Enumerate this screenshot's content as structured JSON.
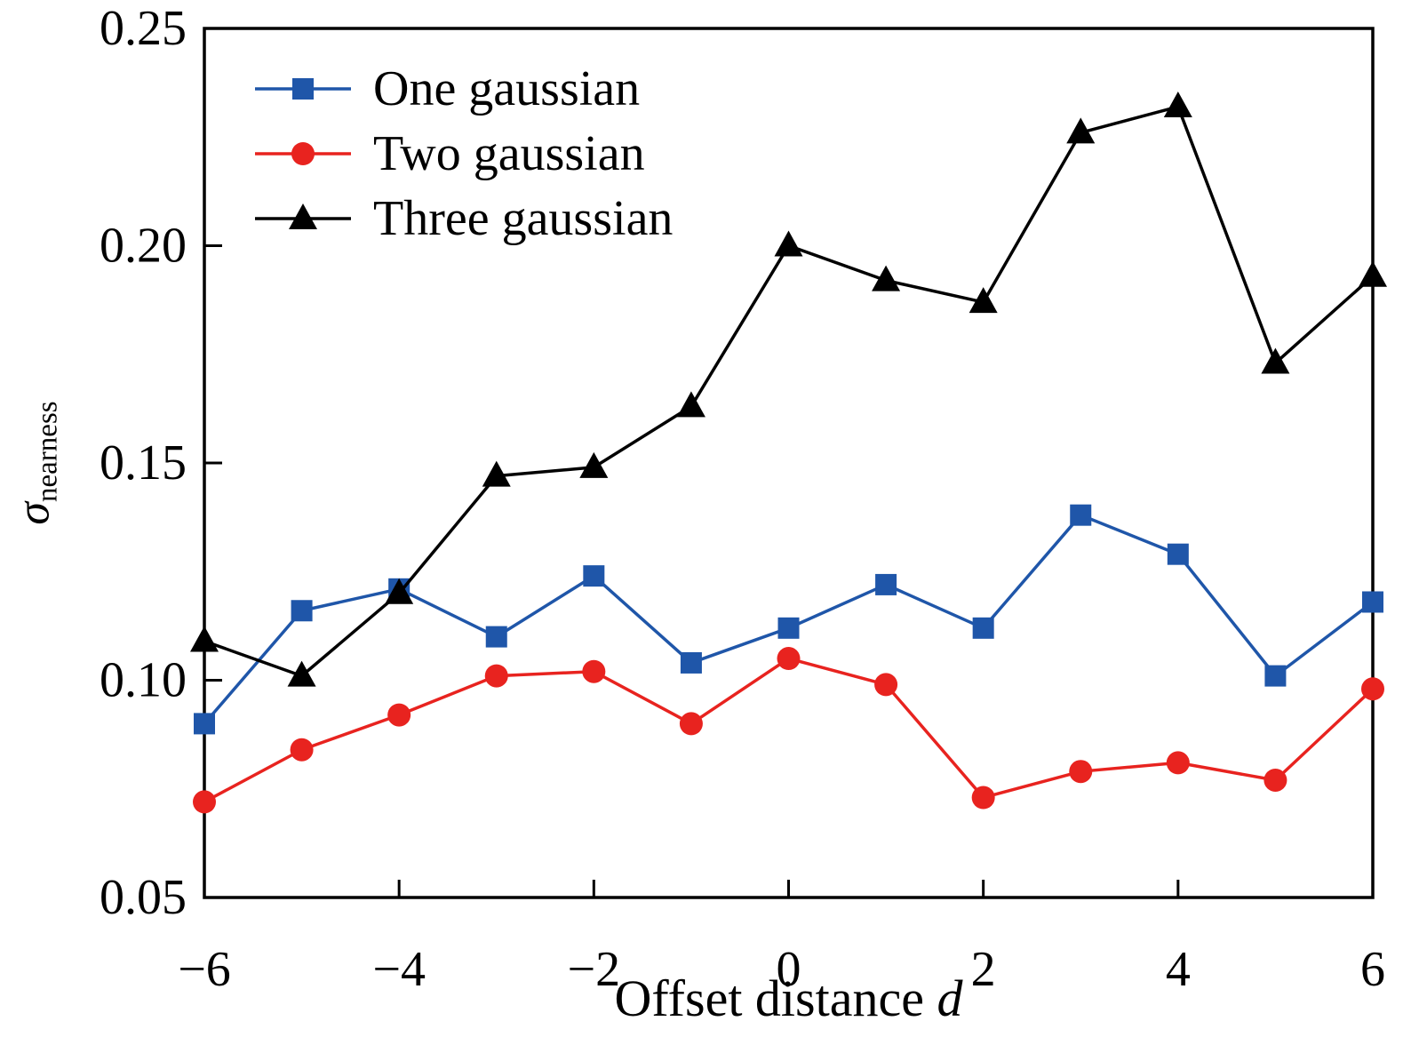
{
  "chart_data": {
    "type": "line",
    "x": [
      -6,
      -5,
      -4,
      -3,
      -2,
      -1,
      0,
      1,
      2,
      3,
      4,
      5,
      6
    ],
    "series": [
      {
        "name": "One gaussian",
        "color": "#1f56a9",
        "marker": "square",
        "values": [
          0.09,
          0.116,
          0.121,
          0.11,
          0.124,
          0.104,
          0.112,
          0.122,
          0.112,
          0.138,
          0.129,
          0.101,
          0.118
        ]
      },
      {
        "name": "Two gaussian",
        "color": "#e8231f",
        "marker": "circle",
        "values": [
          0.072,
          0.084,
          0.092,
          0.101,
          0.102,
          0.09,
          0.105,
          0.099,
          0.073,
          0.079,
          0.081,
          0.077,
          0.098
        ]
      },
      {
        "name": "Three gaussian",
        "color": "#000000",
        "marker": "triangle",
        "values": [
          0.109,
          0.101,
          0.12,
          0.147,
          0.149,
          0.163,
          0.2,
          0.192,
          0.187,
          0.226,
          0.232,
          0.173,
          0.193
        ]
      }
    ],
    "title": "",
    "xlabel": "Offset distance d",
    "ylabel": "σnearness",
    "xlim": [
      -6,
      6
    ],
    "ylim": [
      0.05,
      0.25
    ],
    "xticks": {
      "values": [
        -6,
        -4,
        -2,
        0,
        2,
        4,
        6
      ],
      "labels": [
        "−6",
        "−4",
        "−2",
        "0",
        "2",
        "4",
        "6"
      ]
    },
    "yticks": {
      "values": [
        0.05,
        0.1,
        0.15,
        0.2,
        0.25
      ],
      "labels": [
        "0.05",
        "0.10",
        "0.15",
        "0.20",
        "0.25"
      ]
    },
    "legend_position": "upper left",
    "grid": false
  },
  "labels": {
    "xlabel_text": "Offset distance ",
    "xlabel_var": "d",
    "ylabel_sigma": "σ",
    "ylabel_sub": "nearness"
  }
}
